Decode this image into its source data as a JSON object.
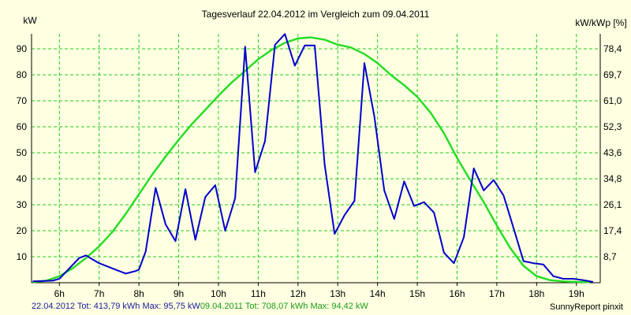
{
  "chart_data": {
    "type": "line",
    "title": "Tagesverlauf 22.04.2012 im Vergleich zum 09.04.2011",
    "ylabel_left": "kW",
    "ylabel_right": "kW/kWp [%]",
    "ylim": [
      0,
      95.75
    ],
    "xlim": [
      5.3,
      19.6
    ],
    "grid": true,
    "x_ticks": [
      "6h",
      "7h",
      "8h",
      "9h",
      "10h",
      "11h",
      "12h",
      "13h",
      "14h",
      "15h",
      "16h",
      "17h",
      "18h",
      "19h"
    ],
    "x_tick_values": [
      6,
      7,
      8,
      9,
      10,
      11,
      12,
      13,
      14,
      15,
      16,
      17,
      18,
      19
    ],
    "y_ticks_left": [
      "10",
      "20",
      "30",
      "40",
      "50",
      "60",
      "70",
      "80",
      "90"
    ],
    "y_tick_values_left": [
      10,
      20,
      30,
      40,
      50,
      60,
      70,
      80,
      90
    ],
    "y_ticks_right": [
      "8,7",
      "17,4",
      "26,1",
      "34,8",
      "43,6",
      "52,3",
      "61,0",
      "69,7",
      "78,4"
    ],
    "series": [
      {
        "name": "22.04.2012",
        "color": "#0000cc",
        "x": [
          5.33,
          5.83,
          6.0,
          6.5,
          6.67,
          6.83,
          7.0,
          7.33,
          7.67,
          7.92,
          8.0,
          8.17,
          8.42,
          8.67,
          8.92,
          9.17,
          9.42,
          9.67,
          9.92,
          10.17,
          10.42,
          10.67,
          10.92,
          11.17,
          11.42,
          11.67,
          11.92,
          12.17,
          12.42,
          12.67,
          12.92,
          13.17,
          13.42,
          13.67,
          13.92,
          14.17,
          14.42,
          14.67,
          14.92,
          15.17,
          15.42,
          15.67,
          15.92,
          16.17,
          16.42,
          16.67,
          16.92,
          17.17,
          17.42,
          17.67,
          17.92,
          18.17,
          18.42,
          18.67,
          18.92,
          19.17,
          19.42
        ],
        "y": [
          0.5,
          0.8,
          1.5,
          9.5,
          10.5,
          9.0,
          7.5,
          5.5,
          3.5,
          4.5,
          5.0,
          12.0,
          36.5,
          22.5,
          16.0,
          36.0,
          16.5,
          33.0,
          37.5,
          20.0,
          32.5,
          90.8,
          42.5,
          54.5,
          91.5,
          95.7,
          83.5,
          91.3,
          91.3,
          45.5,
          18.8,
          26.0,
          31.5,
          84.5,
          64.0,
          35.5,
          24.5,
          39.0,
          29.5,
          31.0,
          27.0,
          11.5,
          7.5,
          17.5,
          44.0,
          35.5,
          39.5,
          33.5,
          21.0,
          8.3,
          7.5,
          7.0,
          2.5,
          1.5,
          1.5,
          1.0,
          0.3
        ]
      },
      {
        "name": "09.04.2011",
        "color": "#22dd22",
        "x": [
          5.33,
          5.67,
          6.0,
          6.33,
          6.67,
          7.0,
          7.33,
          7.67,
          8.0,
          8.33,
          8.67,
          9.0,
          9.33,
          9.67,
          10.0,
          10.33,
          10.67,
          11.0,
          11.33,
          11.67,
          12.0,
          12.33,
          12.67,
          13.0,
          13.33,
          13.67,
          14.0,
          14.33,
          14.67,
          15.0,
          15.33,
          15.67,
          16.0,
          16.33,
          16.67,
          17.0,
          17.33,
          17.67,
          18.0,
          18.33,
          18.67,
          19.0,
          19.33
        ],
        "y": [
          0.2,
          0.8,
          2.5,
          5.5,
          9.5,
          14.0,
          19.5,
          26.5,
          34.0,
          41.5,
          48.5,
          55.0,
          61.0,
          66.5,
          72.0,
          77.0,
          81.5,
          86.0,
          89.5,
          92.3,
          94.0,
          94.4,
          93.5,
          91.6,
          90.5,
          88.0,
          84.5,
          80.0,
          76.0,
          71.5,
          65.5,
          57.5,
          48.0,
          39.5,
          31.0,
          22.0,
          13.5,
          6.5,
          2.5,
          1.0,
          0.5,
          0.3,
          0.2
        ]
      }
    ],
    "legend": [
      {
        "label": "22.04.2012 Tot: 413,79 kWh Max: 95,75 kW",
        "color": "#1a1aa0"
      },
      {
        "label": "09.04.2011 Tot: 708,07 kWh Max: 94,42 kW",
        "color": "#1a9a1a"
      }
    ],
    "legend_position": "bottom-left"
  },
  "footer": {
    "source": "SunnyReport pinxit"
  }
}
